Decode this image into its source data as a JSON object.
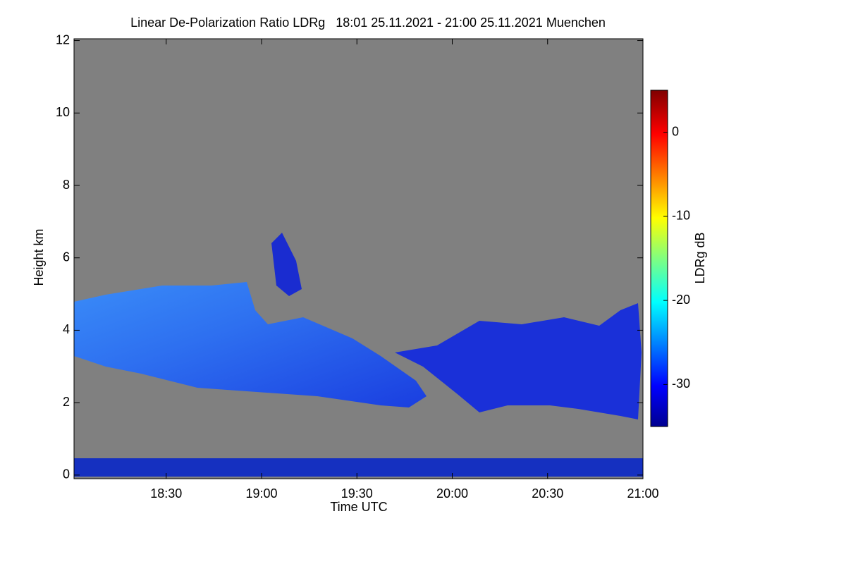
{
  "chart_data": {
    "type": "heatmap",
    "title": "Linear De-Polarization Ratio LDRg   18:01 25.11.2021 - 21:00 25.11.2021 Muenchen",
    "xlabel": "Time UTC",
    "ylabel": "Height km",
    "colorbar_label": "LDRg dB",
    "xlim": [
      18.0167,
      21.0
    ],
    "xticks": [
      {
        "value": 18.5,
        "label": "18:30"
      },
      {
        "value": 19.0,
        "label": "19:00"
      },
      {
        "value": 19.5,
        "label": "19:30"
      },
      {
        "value": 20.0,
        "label": "20:00"
      },
      {
        "value": 20.5,
        "label": "20:30"
      },
      {
        "value": 21.0,
        "label": "21:00"
      }
    ],
    "ylim": [
      -0.1,
      12.05
    ],
    "yticks": [
      0,
      2,
      4,
      6,
      8,
      10,
      12
    ],
    "clim": [
      -35,
      5
    ],
    "cticks": [
      -30,
      -20,
      -10,
      0
    ],
    "background_color": "#808080"
  }
}
